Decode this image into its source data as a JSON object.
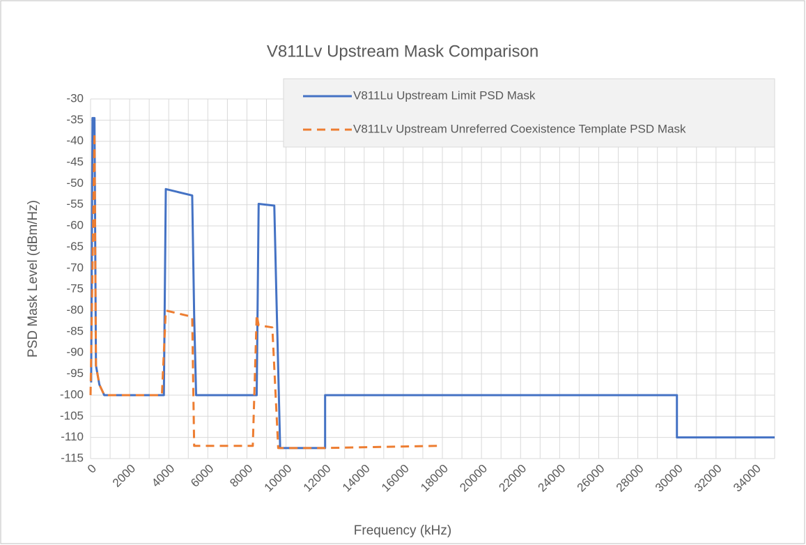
{
  "chart_data": {
    "type": "line",
    "title": "V811Lv Upstream Mask Comparison",
    "xlabel": "Frequency (kHz)",
    "ylabel": "PSD Mask Level (dBm/Hz)",
    "xlim": [
      0,
      35000
    ],
    "ylim": [
      -115,
      -30
    ],
    "xticks": [
      0,
      2000,
      4000,
      6000,
      8000,
      10000,
      12000,
      14000,
      16000,
      18000,
      20000,
      22000,
      24000,
      26000,
      28000,
      30000,
      32000,
      34000
    ],
    "xminorticks": [
      1000,
      3000,
      5000,
      7000,
      9000,
      11000,
      13000,
      15000,
      17000,
      19000,
      21000,
      23000,
      25000,
      27000,
      29000,
      31000,
      33000,
      35000
    ],
    "yticks": [
      -115,
      -110,
      -105,
      -100,
      -95,
      -90,
      -85,
      -80,
      -75,
      -70,
      -65,
      -60,
      -55,
      -50,
      -45,
      -40,
      -35,
      -30
    ],
    "grid": true,
    "legend": "upper-right",
    "series": [
      {
        "name": "V811Lu Upstream Limit PSD Mask",
        "color": "#4472c4",
        "dashed": false,
        "x": [
          30,
          100,
          200,
          276,
          450,
          700,
          3750,
          3850,
          5200,
          5300,
          5400,
          8500,
          8600,
          9400,
          9500,
          9700,
          12000,
          12000,
          30000,
          30000,
          35000
        ],
        "values": [
          -97,
          -34.5,
          -34.5,
          -93,
          -97.5,
          -100,
          -100,
          -51.3,
          -52.8,
          -81,
          -100,
          -100,
          -54.8,
          -55.2,
          -75,
          -112.5,
          -112.5,
          -100,
          -100,
          -110,
          -110
        ]
      },
      {
        "name": "V811Lv Upstream Unreferred Coexistence Template PSD Mask",
        "color": "#ed7d31",
        "dashed": true,
        "x": [
          0,
          200,
          276,
          450,
          700,
          3650,
          3850,
          5200,
          5300,
          8300,
          8500,
          8600,
          9300,
          9600,
          12000,
          17750
        ],
        "values": [
          -100,
          -38,
          -93,
          -97.5,
          -100,
          -100,
          -80,
          -81.5,
          -112,
          -112,
          -81,
          -83.5,
          -84,
          -112.5,
          -112.5,
          -112
        ]
      }
    ]
  }
}
